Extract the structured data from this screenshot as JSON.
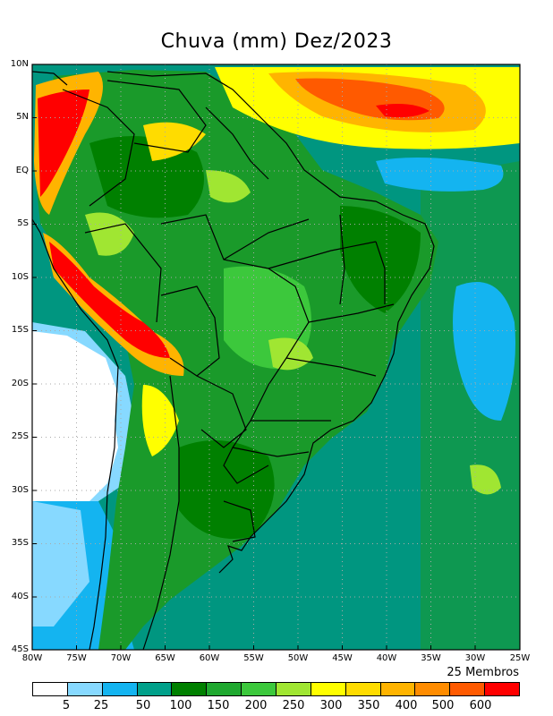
{
  "title": "Chuva (mm) Dez/2023",
  "members_note": "25 Membros",
  "y_ticks": [
    "10N",
    "5N",
    "EQ",
    "5S",
    "10S",
    "15S",
    "20S",
    "25S",
    "30S",
    "35S",
    "40S",
    "45S"
  ],
  "x_ticks": [
    "80W",
    "75W",
    "70W",
    "65W",
    "60W",
    "55W",
    "50W",
    "45W",
    "40W",
    "35W",
    "30W",
    "25W"
  ],
  "legend": {
    "colors": [
      "#ffffff",
      "#87d9ff",
      "#14b4f0",
      "#00a08a",
      "#008000",
      "#1fa82f",
      "#3cc83c",
      "#a0e632",
      "#ffff00",
      "#ffdc00",
      "#ffb400",
      "#ff8c00",
      "#ff5a00",
      "#ff0000"
    ],
    "labels": [
      "5",
      "25",
      "50",
      "100",
      "150",
      "200",
      "250",
      "300",
      "350",
      "400",
      "500",
      "600"
    ]
  },
  "colors": {
    "ocean_base": "#009680",
    "land_base": "#1a9a2a",
    "grid": "#aaaaaa"
  }
}
